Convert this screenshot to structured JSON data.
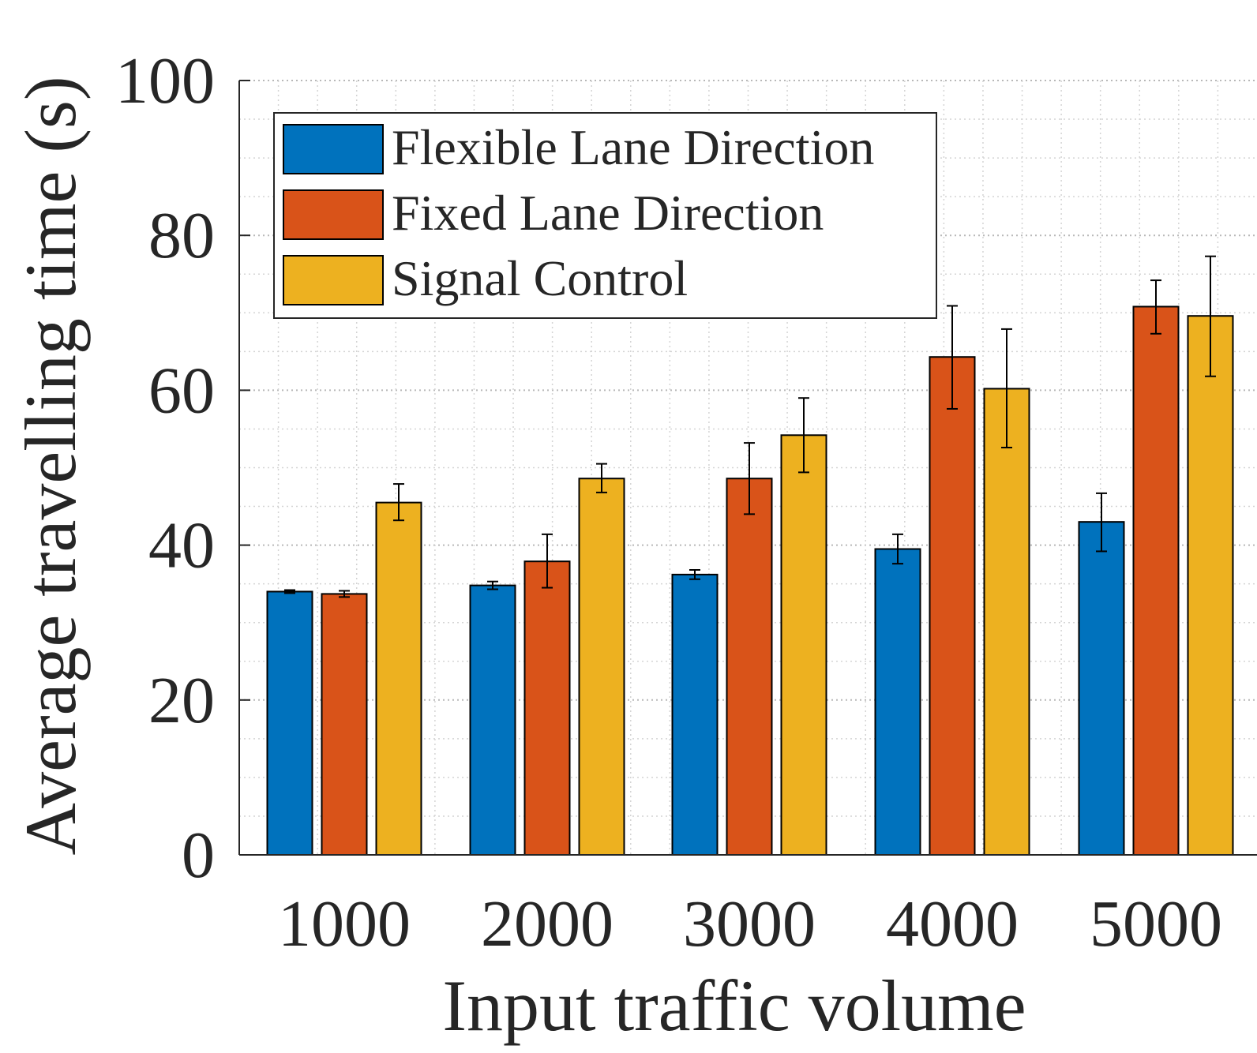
{
  "chart_data": {
    "type": "bar",
    "xlabel": "Input traffic volume",
    "ylabel": "Average travelling time (s)",
    "categories": [
      "1000",
      "2000",
      "3000",
      "4000",
      "5000"
    ],
    "ylim": [
      0,
      100
    ],
    "yticks": [
      "0",
      "20",
      "40",
      "60",
      "80",
      "100"
    ],
    "grid": "major and minor, dotted",
    "legend_position": "top-left",
    "series": [
      {
        "name": "Flexible Lane Direction",
        "color": "#0072BD",
        "values": [
          34.0,
          34.8,
          36.2,
          39.5,
          43.0
        ],
        "error_low": [
          33.8,
          34.3,
          35.6,
          37.6,
          39.2
        ],
        "error_high": [
          34.2,
          35.3,
          36.8,
          41.4,
          46.7
        ]
      },
      {
        "name": "Fixed Lane Direction",
        "color": "#D95319",
        "values": [
          33.7,
          37.9,
          48.6,
          64.3,
          70.8
        ],
        "error_low": [
          33.3,
          34.5,
          44.0,
          57.6,
          67.3
        ],
        "error_high": [
          34.1,
          41.4,
          53.2,
          70.9,
          74.2
        ]
      },
      {
        "name": "Signal Control",
        "color": "#EDB120",
        "values": [
          45.5,
          48.6,
          54.2,
          60.2,
          69.6
        ],
        "error_low": [
          43.2,
          46.8,
          49.4,
          52.6,
          61.8
        ],
        "error_high": [
          47.9,
          50.5,
          59.0,
          67.9,
          77.3
        ]
      }
    ]
  }
}
